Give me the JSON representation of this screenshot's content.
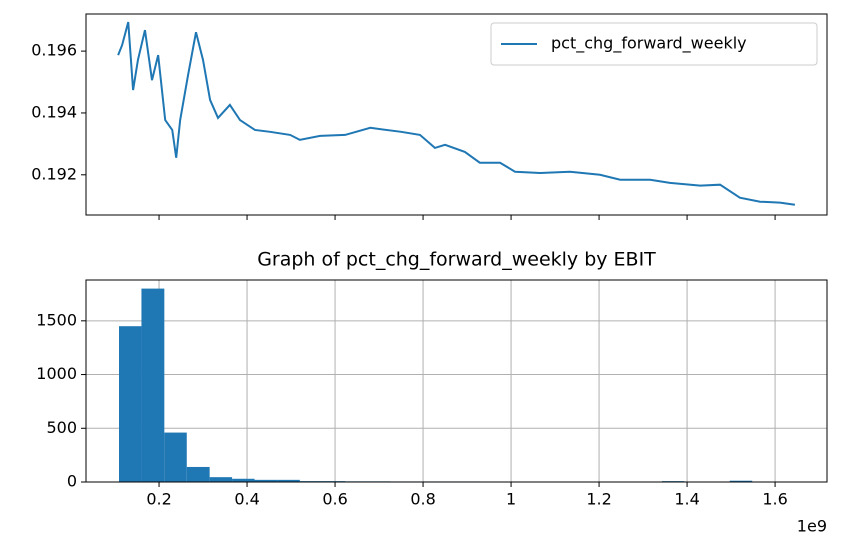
{
  "chart_data": [
    {
      "type": "line",
      "x": [
        0.107,
        0.116,
        0.13,
        0.141,
        0.152,
        0.168,
        0.184,
        0.198,
        0.214,
        0.23,
        0.239,
        0.248,
        0.266,
        0.284,
        0.3,
        0.316,
        0.334,
        0.361,
        0.384,
        0.418,
        0.452,
        0.498,
        0.52,
        0.566,
        0.623,
        0.68,
        0.75,
        0.793,
        0.827,
        0.85,
        0.895,
        0.929,
        0.975,
        1.009,
        1.066,
        1.134,
        1.202,
        1.248,
        1.316,
        1.361,
        1.43,
        1.475,
        1.52,
        1.566,
        1.611,
        1.645
      ],
      "series": [
        {
          "name": "pct_chg_forward_weekly",
          "color": "#1f77b4",
          "values": [
            0.19587,
            0.19619,
            0.19694,
            0.19474,
            0.19571,
            0.19668,
            0.19506,
            0.19587,
            0.19377,
            0.19345,
            0.19255,
            0.19377,
            0.19523,
            0.19661,
            0.19571,
            0.19442,
            0.19384,
            0.19426,
            0.19377,
            0.19345,
            0.19339,
            0.19329,
            0.19313,
            0.19326,
            0.19329,
            0.19352,
            0.19339,
            0.19329,
            0.19287,
            0.19297,
            0.19274,
            0.19239,
            0.19239,
            0.1921,
            0.19206,
            0.1921,
            0.192,
            0.19184,
            0.19184,
            0.19174,
            0.19165,
            0.19168,
            0.19126,
            0.19113,
            0.1911,
            0.19103
          ]
        }
      ],
      "xlim": [
        0.034,
        1.718
      ],
      "xticks": [
        0.2,
        0.4,
        0.6,
        0.8,
        1.0,
        1.2,
        1.4,
        1.6
      ],
      "x_tick_labels": false,
      "ylim": [
        0.1907,
        0.1972
      ],
      "yticks": [
        0.192,
        0.194,
        0.196
      ],
      "legend": "upper right",
      "grid": false
    },
    {
      "type": "histogram",
      "title": "Graph of pct_chg_forward_weekly by EBIT",
      "bins": [
        0.109,
        0.16,
        0.212,
        0.263,
        0.315,
        0.366,
        0.417,
        0.469,
        0.52,
        0.572,
        0.623,
        0.674,
        0.726,
        0.777,
        0.829,
        0.88,
        0.931,
        0.983,
        1.034,
        1.086,
        1.137,
        1.188,
        1.24,
        1.291,
        1.343,
        1.394,
        1.445,
        1.497,
        1.548,
        1.6,
        1.651
      ],
      "values": [
        1450,
        1800,
        460,
        140,
        45,
        30,
        20,
        20,
        8,
        8,
        6,
        6,
        5,
        5,
        5,
        5,
        4,
        4,
        4,
        4,
        4,
        3,
        0,
        3,
        8,
        0,
        3,
        12,
        0,
        2
      ],
      "color": "#1f77b4",
      "xlim": [
        0.034,
        1.718
      ],
      "xticks": [
        0.2,
        0.4,
        0.6,
        0.8,
        1.0,
        1.2,
        1.4,
        1.6
      ],
      "x_offset_label": "1e9",
      "ylim": [
        0,
        1880
      ],
      "yticks": [
        0,
        500,
        1000,
        1500
      ],
      "grid": true
    }
  ]
}
